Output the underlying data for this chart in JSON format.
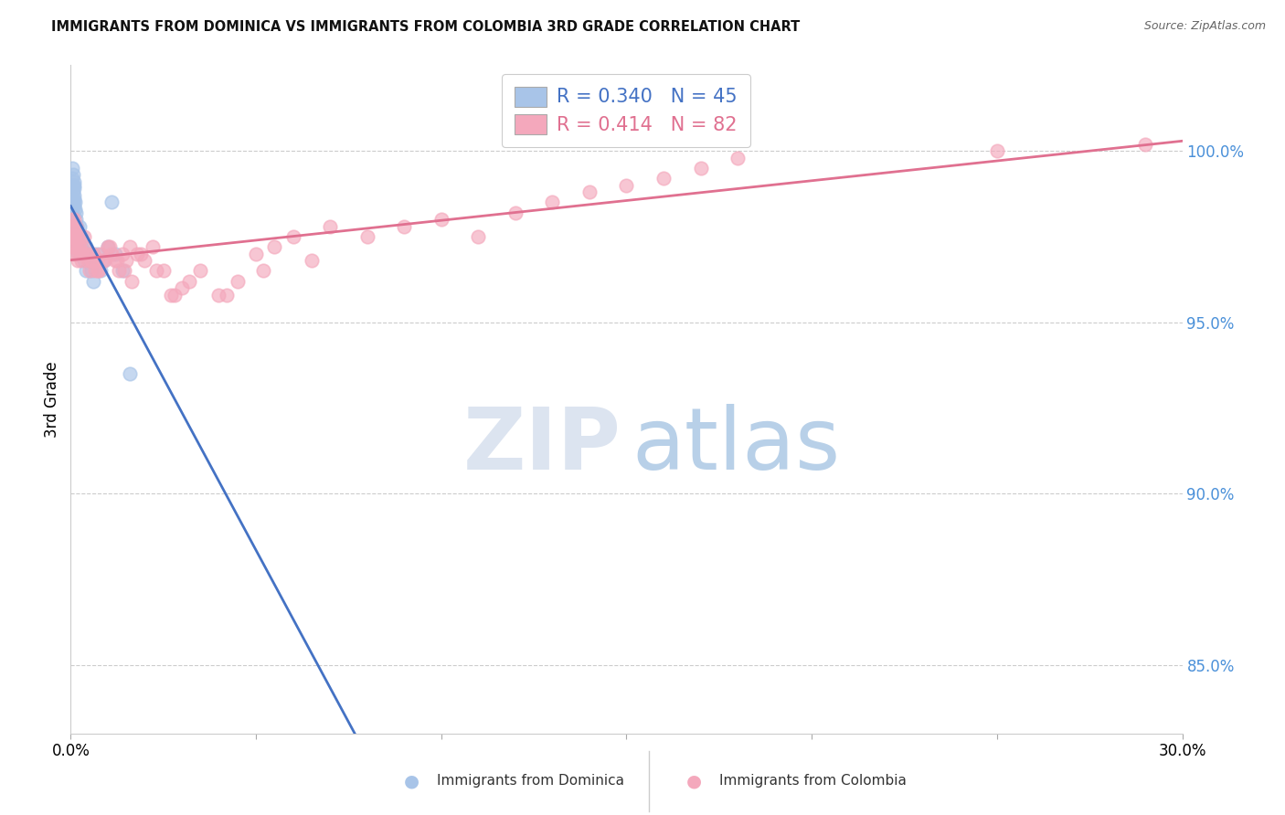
{
  "title": "IMMIGRANTS FROM DOMINICA VS IMMIGRANTS FROM COLOMBIA 3RD GRADE CORRELATION CHART",
  "source": "Source: ZipAtlas.com",
  "ylabel": "3rd Grade",
  "x_min": 0.0,
  "x_max": 30.0,
  "y_min": 83.0,
  "y_max": 102.5,
  "yticks_right": [
    85.0,
    90.0,
    95.0,
    100.0
  ],
  "dominica_color": "#a8c4e8",
  "colombia_color": "#f4a8bc",
  "dominica_line_color": "#4472c4",
  "colombia_line_color": "#e07090",
  "dominica_R": 0.34,
  "dominica_N": 45,
  "colombia_R": 0.414,
  "colombia_N": 82,
  "dominica_x": [
    0.02,
    0.03,
    0.04,
    0.05,
    0.05,
    0.06,
    0.06,
    0.07,
    0.07,
    0.08,
    0.08,
    0.09,
    0.09,
    0.1,
    0.1,
    0.11,
    0.12,
    0.13,
    0.14,
    0.15,
    0.16,
    0.17,
    0.18,
    0.2,
    0.22,
    0.25,
    0.28,
    0.3,
    0.35,
    0.38,
    0.4,
    0.42,
    0.45,
    0.5,
    0.55,
    0.6,
    0.65,
    0.7,
    0.8,
    0.9,
    1.0,
    1.1,
    1.2,
    1.4,
    1.6
  ],
  "dominica_y": [
    97.8,
    97.5,
    98.2,
    99.5,
    99.2,
    99.0,
    98.8,
    99.3,
    98.5,
    99.1,
    98.7,
    98.9,
    98.4,
    98.6,
    99.0,
    98.3,
    98.5,
    97.8,
    98.0,
    98.2,
    97.5,
    97.8,
    97.2,
    97.5,
    97.0,
    97.8,
    97.2,
    97.5,
    96.8,
    97.0,
    97.2,
    96.5,
    97.0,
    96.8,
    96.5,
    96.2,
    96.8,
    97.0,
    96.5,
    96.8,
    97.2,
    98.5,
    97.0,
    96.5,
    93.5
  ],
  "colombia_x": [
    0.02,
    0.03,
    0.04,
    0.05,
    0.06,
    0.07,
    0.08,
    0.09,
    0.1,
    0.12,
    0.14,
    0.16,
    0.18,
    0.2,
    0.22,
    0.25,
    0.28,
    0.3,
    0.35,
    0.4,
    0.45,
    0.5,
    0.55,
    0.6,
    0.65,
    0.7,
    0.75,
    0.8,
    0.9,
    1.0,
    1.1,
    1.2,
    1.3,
    1.4,
    1.5,
    1.6,
    1.8,
    2.0,
    2.2,
    2.5,
    2.8,
    3.0,
    3.5,
    4.0,
    4.5,
    5.0,
    5.5,
    6.0,
    7.0,
    8.0,
    9.0,
    10.0,
    11.0,
    12.0,
    13.0,
    14.0,
    15.0,
    16.0,
    17.0,
    18.0,
    0.08,
    0.12,
    0.15,
    0.25,
    0.35,
    0.42,
    0.55,
    0.72,
    0.85,
    1.05,
    1.25,
    1.45,
    1.65,
    1.9,
    2.3,
    2.7,
    3.2,
    4.2,
    5.2,
    6.5,
    25.0,
    29.0
  ],
  "colombia_y": [
    97.5,
    97.8,
    98.0,
    97.2,
    97.5,
    97.8,
    97.0,
    97.2,
    97.5,
    97.8,
    97.2,
    97.5,
    96.8,
    97.0,
    97.2,
    97.5,
    97.0,
    96.8,
    97.2,
    97.0,
    96.8,
    96.5,
    96.8,
    97.0,
    96.5,
    96.8,
    96.5,
    97.0,
    96.8,
    97.2,
    97.0,
    96.8,
    96.5,
    97.0,
    96.8,
    97.2,
    97.0,
    96.8,
    97.2,
    96.5,
    95.8,
    96.0,
    96.5,
    95.8,
    96.2,
    97.0,
    97.2,
    97.5,
    97.8,
    97.5,
    97.8,
    98.0,
    97.5,
    98.2,
    98.5,
    98.8,
    99.0,
    99.2,
    99.5,
    99.8,
    98.0,
    97.5,
    97.8,
    97.2,
    97.5,
    97.0,
    96.8,
    96.5,
    96.8,
    97.2,
    96.8,
    96.5,
    96.2,
    97.0,
    96.5,
    95.8,
    96.2,
    95.8,
    96.5,
    96.8,
    100.0,
    100.2
  ]
}
